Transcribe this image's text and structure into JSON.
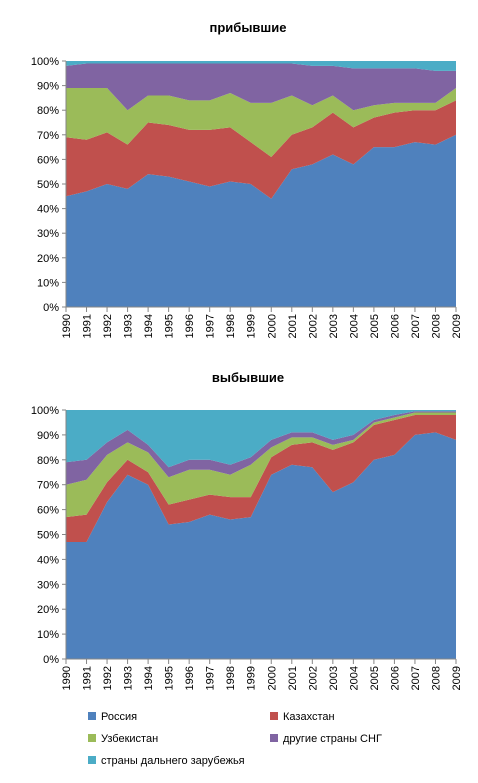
{
  "chart_data": [
    {
      "type": "area",
      "stacking": "percent",
      "title": "прибывшие",
      "x": [
        "1990",
        "1991",
        "1992",
        "1993",
        "1994",
        "1995",
        "1996",
        "1997",
        "1998",
        "1999",
        "2000",
        "2001",
        "2002",
        "2003",
        "2004",
        "2005",
        "2006",
        "2007",
        "2008",
        "2009"
      ],
      "ylim": [
        0,
        100
      ],
      "yticks": [
        "0%",
        "10%",
        "20%",
        "30%",
        "40%",
        "50%",
        "60%",
        "70%",
        "80%",
        "90%",
        "100%"
      ],
      "grid": false,
      "series": [
        {
          "name": "Россия",
          "color": "#4F81BD",
          "values": [
            45,
            47,
            50,
            48,
            54,
            53,
            51,
            49,
            51,
            50,
            44,
            56,
            58,
            62,
            58,
            65,
            65,
            67,
            66,
            70
          ]
        },
        {
          "name": "Казахстан",
          "color": "#C0504D",
          "values": [
            24,
            21,
            21,
            18,
            21,
            21,
            21,
            23,
            22,
            17,
            17,
            14,
            15,
            17,
            15,
            12,
            14,
            13,
            14,
            14
          ]
        },
        {
          "name": "Узбекистан",
          "color": "#9BBB59",
          "values": [
            20,
            21,
            18,
            14,
            11,
            12,
            12,
            12,
            14,
            16,
            22,
            16,
            9,
            7,
            7,
            5,
            4,
            3,
            3,
            5
          ]
        },
        {
          "name": "другие страны СНГ",
          "color": "#8064A2",
          "values": [
            9,
            10,
            10,
            19,
            13,
            13,
            15,
            15,
            12,
            16,
            16,
            13,
            16,
            12,
            17,
            15,
            14,
            14,
            13,
            7
          ]
        },
        {
          "name": "страны дальнего зарубежья",
          "color": "#4BACC6",
          "values": [
            2,
            1,
            1,
            1,
            1,
            1,
            1,
            1,
            1,
            1,
            1,
            1,
            2,
            2,
            3,
            3,
            3,
            3,
            4,
            4
          ]
        }
      ]
    },
    {
      "type": "area",
      "stacking": "percent",
      "title": "выбывшие",
      "x": [
        "1990",
        "1991",
        "1992",
        "1993",
        "1994",
        "1995",
        "1996",
        "1997",
        "1998",
        "1999",
        "2000",
        "2001",
        "2002",
        "2003",
        "2004",
        "2005",
        "2006",
        "2007",
        "2008",
        "2009"
      ],
      "ylim": [
        0,
        100
      ],
      "yticks": [
        "0%",
        "10%",
        "20%",
        "30%",
        "40%",
        "50%",
        "60%",
        "70%",
        "80%",
        "90%",
        "100%"
      ],
      "grid": false,
      "series": [
        {
          "name": "Россия",
          "color": "#4F81BD",
          "values": [
            47,
            47,
            63,
            74,
            70,
            54,
            55,
            58,
            56,
            57,
            74,
            78,
            77,
            67,
            71,
            80,
            82,
            90,
            91,
            88
          ]
        },
        {
          "name": "Казахстан",
          "color": "#C0504D",
          "values": [
            10,
            11,
            8,
            6,
            5,
            8,
            9,
            8,
            9,
            8,
            7,
            8,
            10,
            17,
            16,
            14,
            14,
            8,
            7,
            10
          ]
        },
        {
          "name": "Узбекистан",
          "color": "#9BBB59",
          "values": [
            13,
            14,
            11,
            7,
            8,
            11,
            12,
            10,
            9,
            13,
            4,
            3,
            2,
            2,
            1,
            1,
            1,
            1,
            1,
            1
          ]
        },
        {
          "name": "другие страны СНГ",
          "color": "#8064A2",
          "values": [
            9,
            8,
            5,
            5,
            3,
            4,
            4,
            4,
            4,
            3,
            3,
            2,
            2,
            2,
            2,
            1,
            1,
            0.5,
            0.5,
            0.5
          ]
        },
        {
          "name": "страны дальнего зарубежья",
          "color": "#4BACC6",
          "values": [
            21,
            20,
            13,
            8,
            14,
            23,
            20,
            20,
            22,
            19,
            12,
            9,
            9,
            12,
            10,
            4,
            2,
            0.5,
            0.5,
            0.5
          ]
        }
      ]
    }
  ],
  "legend": {
    "placement": "bottom",
    "items": [
      {
        "label": "Россия",
        "color": "#4F81BD"
      },
      {
        "label": "Казахстан",
        "color": "#C0504D"
      },
      {
        "label": "Узбекистан",
        "color": "#9BBB59"
      },
      {
        "label": "другие страны СНГ",
        "color": "#8064A2"
      },
      {
        "label": "страны дальнего зарубежья",
        "color": "#4BACC6"
      }
    ]
  }
}
